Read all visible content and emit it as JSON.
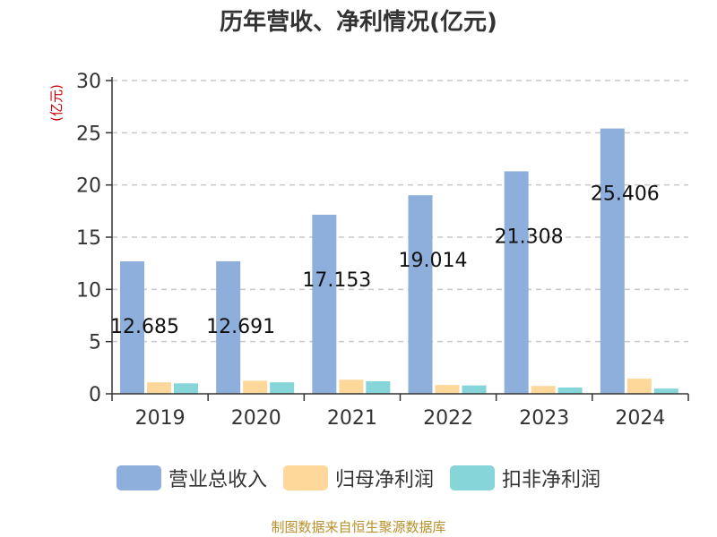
{
  "chart_data": {
    "type": "bar",
    "title": "历年营收、净利情况(亿元)",
    "ylabel": "(亿元)",
    "ylim": [
      0,
      30
    ],
    "yticks": [
      0,
      5,
      10,
      15,
      20,
      25,
      30
    ],
    "grid": true,
    "legend_position": "bottom",
    "categories": [
      "2019",
      "2020",
      "2021",
      "2022",
      "2023",
      "2024"
    ],
    "series": [
      {
        "name": "营业总收入",
        "color": "#8eafdb",
        "values": [
          12.685,
          12.691,
          17.153,
          19.014,
          21.308,
          25.406
        ]
      },
      {
        "name": "归母净利润",
        "color": "#fdd89a",
        "values": [
          1.1,
          1.25,
          1.35,
          0.85,
          0.75,
          1.45
        ]
      },
      {
        "name": "扣非净利润",
        "color": "#86d5d8",
        "values": [
          1.0,
          1.1,
          1.2,
          0.8,
          0.6,
          0.5
        ]
      }
    ],
    "data_labels": [
      "12.685",
      "12.691",
      "17.153",
      "19.014",
      "21.308",
      "25.406"
    ]
  },
  "source": "制图数据来自恒生聚源数据库"
}
